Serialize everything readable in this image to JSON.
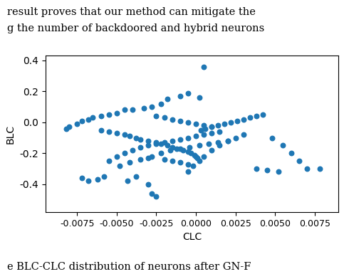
{
  "chart_data": {
    "type": "scatter",
    "xlabel": "CLC",
    "ylabel": "BLC",
    "annotations": [
      "result proves that our method can mitigate the",
      "g the number of backdoored and hybrid neurons",
      "e BLC-CLC distribution of neurons after GN-F"
    ],
    "xlim": [
      -0.0095,
      0.009
    ],
    "ylim": [
      -0.58,
      0.43
    ],
    "xticks": [
      {
        "value": -0.0075,
        "label": "-0.0075"
      },
      {
        "value": -0.005,
        "label": "-0.0050"
      },
      {
        "value": -0.0025,
        "label": "-0.0025"
      },
      {
        "value": 0.0,
        "label": "0.0000"
      },
      {
        "value": 0.0025,
        "label": "0.0025"
      },
      {
        "value": 0.005,
        "label": "0.0050"
      },
      {
        "value": 0.0075,
        "label": "0.0075"
      }
    ],
    "yticks": [
      -0.4,
      -0.2,
      0.0,
      0.2,
      0.4
    ],
    "x": [
      0.0005,
      -0.0005,
      -0.001,
      -0.0018,
      -0.0022,
      -0.0028,
      -0.0033,
      -0.004,
      -0.0045,
      -0.005,
      -0.0055,
      -0.006,
      -0.0065,
      -0.0068,
      -0.0072,
      -0.0075,
      -0.008,
      -0.0082,
      -0.006,
      -0.0055,
      -0.005,
      -0.0045,
      -0.0042,
      -0.0038,
      -0.0035,
      -0.003,
      -0.0025,
      -0.0022,
      -0.0018,
      -0.0015,
      -0.0012,
      -0.0008,
      -0.0005,
      -0.0003,
      -0.0001,
      0.0,
      0.0001,
      0.0003,
      0.0006,
      0.001,
      0.0014,
      0.0018,
      0.0022,
      0.0026,
      0.003,
      0.0034,
      0.0038,
      0.0042,
      0.0048,
      0.0055,
      0.006,
      0.0065,
      0.007,
      0.0078,
      -0.0055,
      -0.005,
      -0.0045,
      -0.004,
      -0.0035,
      -0.003,
      -0.0025,
      -0.002,
      -0.0015,
      -0.001,
      -0.0005,
      0.0,
      0.0005,
      0.001,
      0.0015,
      -0.0048,
      -0.0042,
      -0.0035,
      -0.0028,
      -0.0022,
      -0.0016,
      -0.001,
      -0.0004,
      0.0002,
      0.0008,
      0.0014,
      0.002,
      -0.0058,
      -0.0062,
      -0.0068,
      -0.0072,
      -0.0005,
      -0.0002,
      0.0002,
      0.0005,
      0.001,
      0.0015,
      0.002,
      0.0025,
      0.003,
      0.0038,
      0.0045,
      0.0052,
      -0.0025,
      -0.002,
      -0.0015,
      -0.001,
      -0.0005,
      0.0,
      0.0005,
      0.001,
      -0.003,
      -0.0028,
      -0.0025,
      -0.0038,
      -0.0043,
      0.0002,
      -0.0005,
      -0.001,
      -0.0015,
      -0.002,
      -0.003
    ],
    "values": [
      0.36,
      0.19,
      0.17,
      0.15,
      0.12,
      0.1,
      0.09,
      0.08,
      0.08,
      0.06,
      0.05,
      0.04,
      0.03,
      0.02,
      0.01,
      -0.01,
      -0.03,
      -0.04,
      -0.05,
      -0.06,
      -0.07,
      -0.08,
      -0.09,
      -0.1,
      -0.11,
      -0.12,
      -0.13,
      -0.14,
      -0.15,
      -0.16,
      -0.17,
      -0.18,
      -0.19,
      -0.2,
      -0.21,
      -0.22,
      -0.23,
      -0.05,
      -0.04,
      -0.03,
      -0.02,
      -0.01,
      0.0,
      0.01,
      0.02,
      0.03,
      0.04,
      0.05,
      -0.1,
      -0.15,
      -0.2,
      -0.25,
      -0.3,
      -0.3,
      -0.25,
      -0.22,
      -0.2,
      -0.18,
      -0.16,
      -0.15,
      -0.14,
      -0.13,
      -0.12,
      -0.11,
      -0.1,
      -0.09,
      -0.08,
      -0.07,
      -0.06,
      -0.28,
      -0.26,
      -0.24,
      -0.22,
      -0.2,
      -0.18,
      -0.17,
      -0.16,
      -0.15,
      -0.14,
      -0.13,
      -0.12,
      -0.35,
      -0.37,
      -0.38,
      -0.36,
      -0.32,
      -0.28,
      -0.25,
      -0.22,
      -0.18,
      -0.15,
      -0.12,
      -0.1,
      -0.08,
      -0.3,
      -0.31,
      -0.32,
      0.04,
      0.03,
      0.02,
      0.01,
      0.0,
      -0.01,
      -0.02,
      -0.03,
      -0.4,
      -0.46,
      -0.48,
      -0.35,
      -0.38,
      0.16,
      -0.27,
      -0.26,
      -0.25,
      -0.24,
      -0.23
    ]
  }
}
